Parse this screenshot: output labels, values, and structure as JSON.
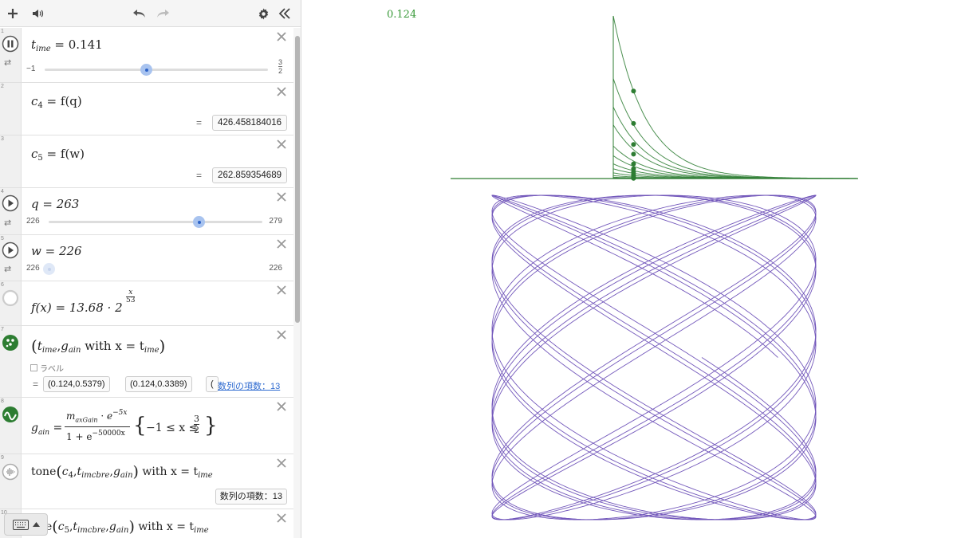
{
  "colors": {
    "green": "#2d7d32",
    "purple": "#6446b4",
    "slider_blue": "#2d63c8"
  },
  "toolbar": {
    "icons": [
      "plus-icon",
      "speaker-icon",
      "undo-icon",
      "redo-icon",
      "gear-icon",
      "collapse-icon"
    ]
  },
  "expressions": [
    {
      "num": "1",
      "name": "t",
      "sub": "ime",
      "text": " = 0.141",
      "slider": {
        "min": "−1",
        "max_num": "3",
        "max_den": "2",
        "value": 0.141,
        "lo": -1,
        "hi": 1.5
      }
    },
    {
      "num": "2",
      "lhs": "c",
      "lhs_sub": "4",
      "rhs": " = f(q)",
      "value": "426.458184016"
    },
    {
      "num": "3",
      "lhs": "c",
      "lhs_sub": "5",
      "rhs": " = f(w)",
      "value": "262.859354689"
    },
    {
      "num": "4",
      "text": "q = 263",
      "slider": {
        "min": "226",
        "max": "279",
        "value": 263,
        "lo": 226,
        "hi": 279
      }
    },
    {
      "num": "5",
      "text": "w = 226",
      "slider": {
        "min": "226",
        "max": "226",
        "value": 226,
        "lo": 226,
        "hi": 226
      }
    },
    {
      "num": "6",
      "text": "f(x) = 13.68 · 2",
      "exp_num": "x",
      "exp_den": "53"
    },
    {
      "num": "7",
      "text": "with x = t",
      "label_checkbox": "ラベル",
      "points": [
        "(0.124,0.5379)",
        "(0.124,0.3389)",
        "("
      ],
      "link": "数列の項数：13"
    },
    {
      "num": "8",
      "lhs": "g",
      "lhs_sub": "ain",
      "num_text": "m",
      "num_sub": "axGain",
      "num_exp": "−5x",
      "den_text": "1 + e",
      "den_exp": "−50000x",
      "restriction": "−1 ≤ x ≤",
      "frac_num": "3",
      "frac_den": "2"
    },
    {
      "num": "9",
      "text": "tone",
      "args_sub": "imcbre",
      "suffix": "with x = t",
      "suffix_sub": "ime",
      "badge": "数列の項数：13"
    },
    {
      "num": "10",
      "text": "e",
      "args_sub": "imcbre",
      "suffix": "with x = t",
      "suffix_sub": "ime"
    }
  ],
  "graph": {
    "readout": "0.124"
  },
  "chart_data": {
    "type": "line",
    "title": "",
    "green_curves": {
      "description_of_values": "decaying exponential gain curves",
      "x_start": 0,
      "peak_heights": [
        1,
        0.615,
        0.44,
        0.33,
        0.2,
        0.14,
        0.09,
        0.06,
        0.035,
        0.018,
        0.008,
        0.004,
        0.002
      ],
      "decay_rate": 5
    },
    "green_points": {
      "x": 0.124,
      "y": [
        0.5379,
        0.3389,
        0.21,
        0.15,
        0.09,
        0.06,
        0.04,
        0.025,
        0.015,
        0.009,
        0.005,
        0.003,
        0.001
      ]
    },
    "lissajous": {
      "freq_a": 426.458184016,
      "freq_b": 262.859354689,
      "color": "#6446b4"
    }
  }
}
